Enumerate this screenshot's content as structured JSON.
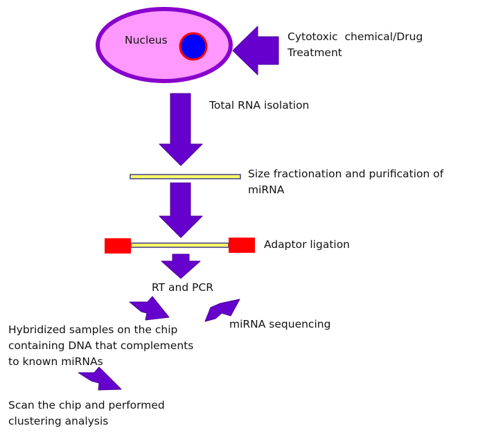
{
  "colors": {
    "arrow": "#6600cc",
    "arrow_stroke": "#4b0099",
    "cell_fill": "#ff99ff",
    "cell_border": "#8800cc",
    "nucleus_fill": "#0000ff",
    "nucleus_border": "#ff0000",
    "strand_fill": "#ffff66",
    "strand_border": "#3b3b8c",
    "adaptor": "#ff0000"
  },
  "labels": {
    "nucleus": "Nucleus",
    "treatment": [
      "Cytotoxic  chemical/Drug",
      "Treatment"
    ],
    "total_rna": "Total RNA isolation",
    "size_fractionation": [
      "Size fractionation and purification of",
      "miRNA"
    ],
    "adaptor_ligation": "Adaptor ligation",
    "rt_pcr": "RT and PCR",
    "hybridized": [
      "Hybridized samples on the chip",
      "containing DNA that complements",
      "to known miRNAs"
    ],
    "mirna_sequencing": "miRNA sequencing",
    "scan_chip": [
      "Scan the chip and performed",
      "clustering analysis"
    ]
  },
  "icons": [
    "cell-icon",
    "nucleus-icon",
    "block-arrow-icon",
    "rna-strand-icon",
    "adaptor-icon"
  ]
}
